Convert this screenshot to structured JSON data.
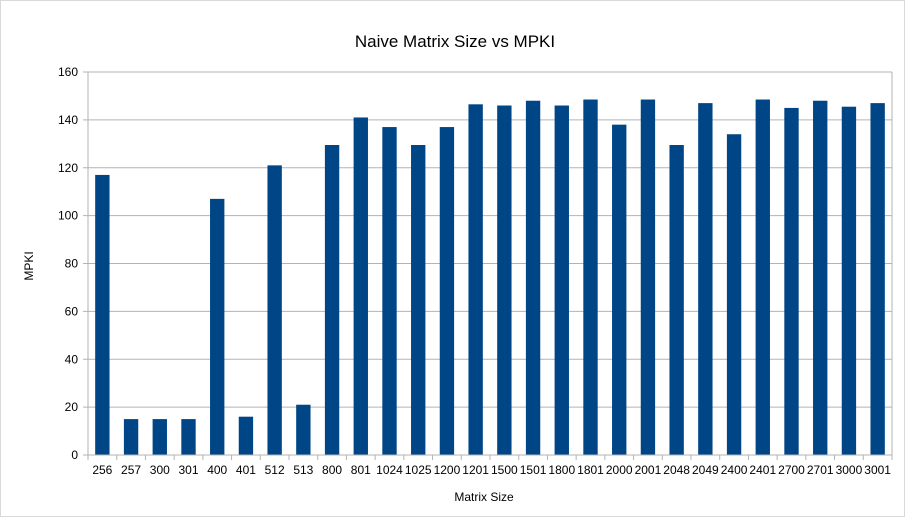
{
  "chart_data": {
    "type": "bar",
    "title": "Naive Matrix Size vs MPKI",
    "xlabel": "Matrix Size",
    "ylabel": "MPKI",
    "ylim": [
      0,
      160
    ],
    "yticks": [
      0,
      20,
      40,
      60,
      80,
      100,
      120,
      140,
      160
    ],
    "grid": "horizontal",
    "legend": "none",
    "color": "#004586",
    "categories": [
      "256",
      "257",
      "300",
      "301",
      "400",
      "401",
      "512",
      "513",
      "800",
      "801",
      "1024",
      "1025",
      "1200",
      "1201",
      "1500",
      "1501",
      "1800",
      "1801",
      "2000",
      "2001",
      "2048",
      "2049",
      "2400",
      "2401",
      "2700",
      "2701",
      "3000",
      "3001"
    ],
    "values": [
      117,
      15,
      15,
      15,
      107,
      16,
      121,
      21,
      129.5,
      141,
      137,
      129.5,
      137,
      146.5,
      146,
      148,
      146,
      148.5,
      138,
      148.5,
      129.5,
      147,
      134,
      148.5,
      145,
      148,
      145.5,
      147
    ]
  }
}
